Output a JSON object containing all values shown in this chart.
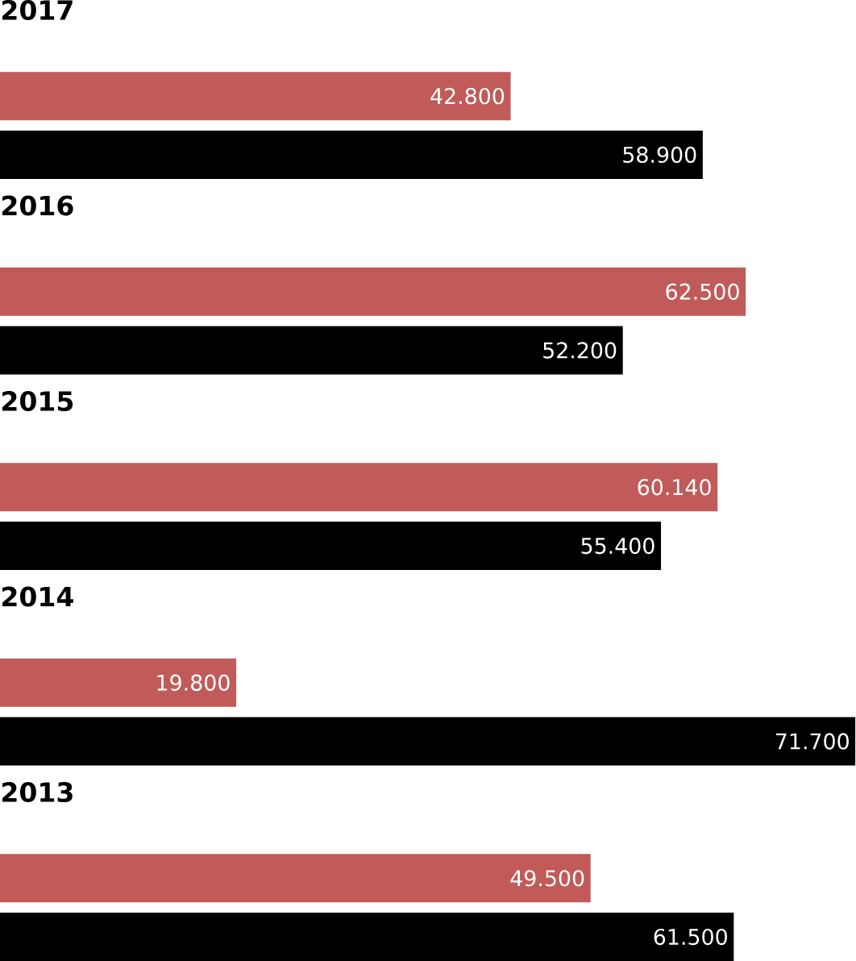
{
  "chart_data": {
    "type": "bar",
    "orientation": "horizontal",
    "categories": [
      "2017",
      "2016",
      "2015",
      "2014",
      "2013"
    ],
    "series": [
      {
        "color": "#c05b5a",
        "values": [
          42800,
          62500,
          60140,
          19800,
          49500
        ],
        "value_labels": [
          "42.800",
          "62.500",
          "60.140",
          "19.800",
          "49.500"
        ]
      },
      {
        "color": "#000000",
        "values": [
          58900,
          52200,
          55400,
          71700,
          61500
        ],
        "value_labels": [
          "58.900",
          "52.200",
          "55.400",
          "71.700",
          "61.500"
        ]
      }
    ]
  }
}
